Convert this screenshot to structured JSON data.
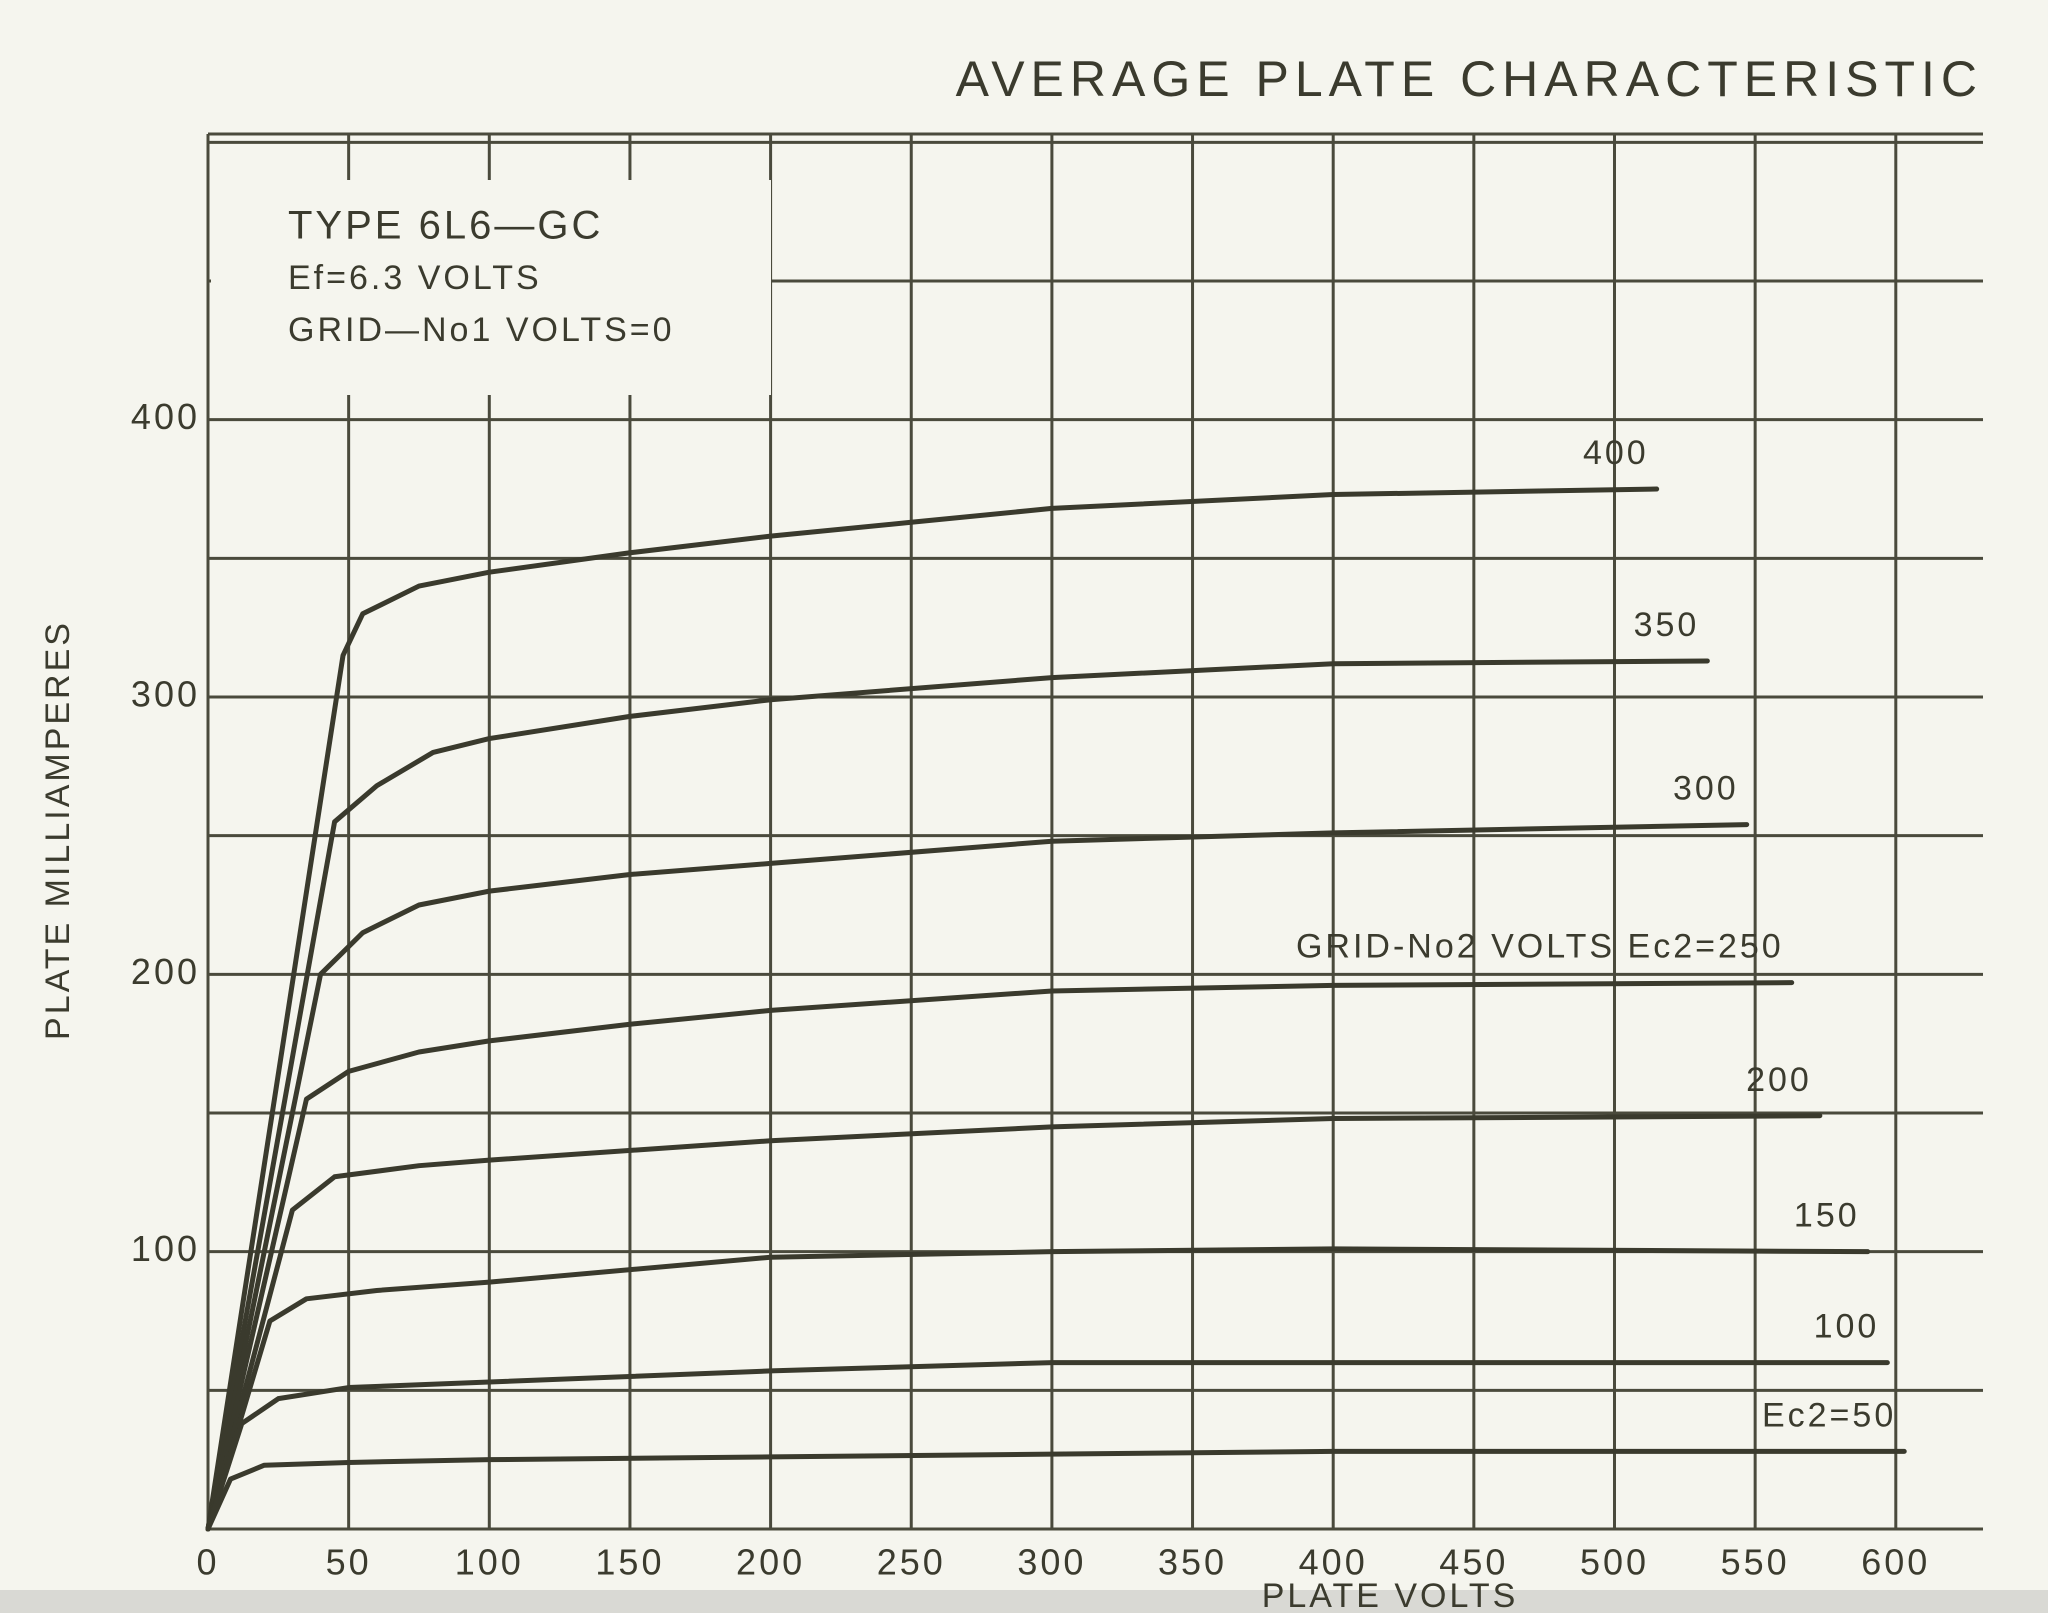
{
  "chart_data": {
    "type": "line",
    "title": "AVERAGE PLATE CHARACTERISTIC",
    "x_label": "PLATE VOLTS",
    "y_label": "PLATE MILLIAMPERES",
    "annotations": [
      "TYPE 6L6—GC",
      "Ef=6.3 VOLTS",
      "GRID—No1 VOLTS=0"
    ],
    "xlim": [
      0,
      631
    ],
    "ylim": [
      0,
      503
    ],
    "xticks": [
      0,
      50,
      100,
      150,
      200,
      250,
      300,
      350,
      400,
      450,
      500,
      550,
      600
    ],
    "yticks": [
      100,
      200,
      300,
      400
    ],
    "ygrid": [
      50,
      100,
      150,
      200,
      250,
      300,
      350,
      400,
      450,
      500
    ],
    "grid": true,
    "color": "#3a3a2d",
    "series": [
      {
        "name": "400",
        "x": [
          0,
          48,
          55,
          75,
          100,
          150,
          200,
          250,
          300,
          400,
          515
        ],
        "values": [
          0,
          315,
          330,
          340,
          345,
          352,
          358,
          363,
          368,
          373,
          375
        ]
      },
      {
        "name": "350",
        "x": [
          0,
          45,
          60,
          80,
          100,
          150,
          200,
          300,
          400,
          533
        ],
        "values": [
          0,
          255,
          268,
          280,
          285,
          293,
          299,
          307,
          312,
          313
        ]
      },
      {
        "name": "300",
        "x": [
          0,
          40,
          55,
          75,
          100,
          150,
          200,
          300,
          400,
          547
        ],
        "values": [
          0,
          200,
          215,
          225,
          230,
          236,
          240,
          248,
          251,
          254
        ]
      },
      {
        "name": "GRID-No2 VOLTS  Ec2=250",
        "x": [
          0,
          35,
          50,
          75,
          100,
          150,
          200,
          300,
          400,
          563
        ],
        "values": [
          0,
          155,
          165,
          172,
          176,
          182,
          187,
          194,
          196,
          197
        ]
      },
      {
        "name": "200",
        "x": [
          0,
          30,
          45,
          75,
          100,
          200,
          300,
          400,
          573
        ],
        "values": [
          0,
          115,
          127,
          131,
          133,
          140,
          145,
          148,
          149
        ]
      },
      {
        "name": "150",
        "x": [
          0,
          22,
          35,
          60,
          100,
          200,
          300,
          400,
          590
        ],
        "values": [
          0,
          75,
          83,
          86,
          89,
          98,
          100,
          101,
          100
        ]
      },
      {
        "name": "100",
        "x": [
          0,
          12,
          25,
          50,
          100,
          200,
          300,
          400,
          597
        ],
        "values": [
          0,
          38,
          47,
          51,
          53,
          57,
          60,
          60,
          60
        ]
      },
      {
        "name": "Ec2=50",
        "x": [
          0,
          8,
          20,
          50,
          100,
          200,
          300,
          400,
          603
        ],
        "values": [
          0,
          18,
          23,
          24,
          25,
          26,
          27,
          28,
          28
        ]
      }
    ]
  }
}
